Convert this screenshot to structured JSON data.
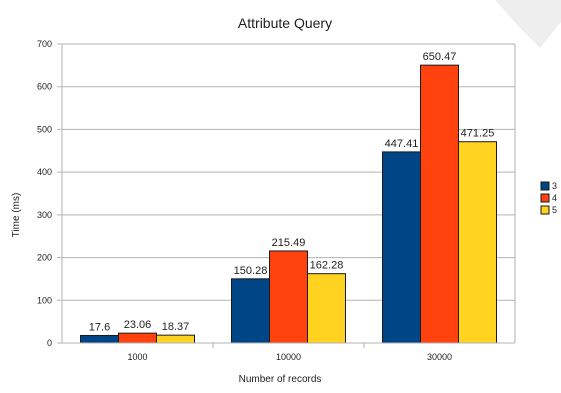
{
  "chart_data": {
    "type": "bar",
    "title": "Attribute Query",
    "xlabel": "Number of records",
    "ylabel": "Time (ms)",
    "categories": [
      "1000",
      "10000",
      "30000"
    ],
    "ylim": [
      0,
      700
    ],
    "yticks": [
      0,
      100,
      200,
      300,
      400,
      500,
      600,
      700
    ],
    "grid": true,
    "legend_position": "right",
    "series": [
      {
        "name": "3",
        "color": "#004586",
        "values": [
          17.6,
          150.28,
          447.41
        ],
        "labels": [
          "17.6",
          "150.28",
          "447.41"
        ]
      },
      {
        "name": "4",
        "color": "#ff420e",
        "values": [
          23.06,
          215.49,
          650.47
        ],
        "labels": [
          "23.06",
          "215.49",
          "650.47"
        ]
      },
      {
        "name": "5",
        "color": "#ffd320",
        "values": [
          18.37,
          162.28,
          471.25
        ],
        "labels": [
          "18.37",
          "162.28",
          "471.25"
        ]
      }
    ]
  }
}
